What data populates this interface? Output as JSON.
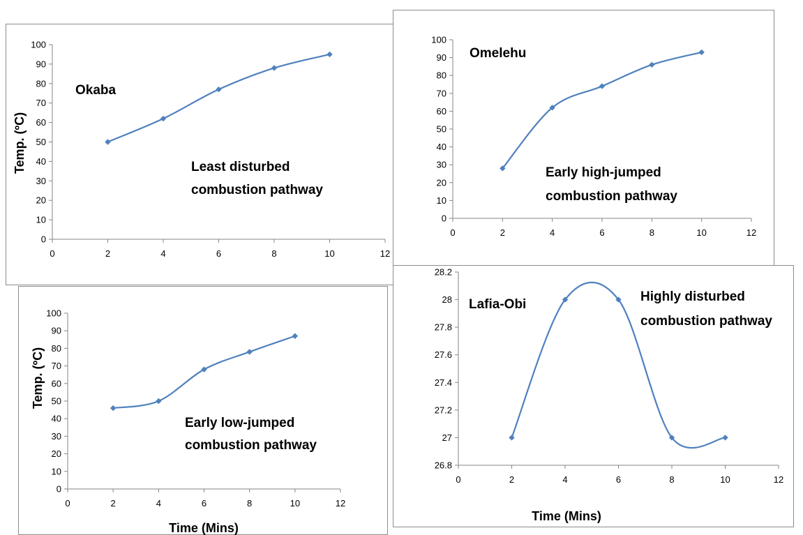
{
  "charts": {
    "okaba": {
      "title": "Okaba",
      "ylabel": "Temp. (ºC)",
      "annotation": [
        "Least disturbed",
        "combustion pathway"
      ]
    },
    "omelehu": {
      "title": "Omelehu",
      "annotation": [
        "Early high-jumped",
        "combustion pathway"
      ]
    },
    "early_low": {
      "ylabel": "Temp. (ºC)",
      "xlabel": "Time (Mins)",
      "annotation": [
        "Early low-jumped",
        "combustion pathway"
      ]
    },
    "lafia_obi": {
      "title": "Lafia-Obi",
      "xlabel": "Time (Mins)",
      "annotation": [
        "Highly disturbed",
        "combustion pathway"
      ]
    }
  },
  "colors": {
    "series": "#4f81bd",
    "axis": "#868686",
    "border": "#8c8c8c"
  },
  "chart_data": [
    {
      "type": "line",
      "title": "Okaba",
      "xlabel": "",
      "ylabel": "Temp. (ºC)",
      "x": [
        2,
        4,
        6,
        8,
        10
      ],
      "values": [
        50,
        62,
        77,
        88,
        95
      ],
      "xlim": [
        0,
        12
      ],
      "xticks": [
        0,
        2,
        4,
        6,
        8,
        10,
        12
      ],
      "xtick_labels": [
        "0",
        "2",
        "4",
        "6",
        "8",
        "10",
        "12"
      ],
      "ylim": [
        0,
        100
      ],
      "yticks": [
        0,
        10,
        20,
        30,
        40,
        50,
        60,
        70,
        80,
        90,
        100
      ],
      "ytick_labels": [
        "0",
        "10",
        "20",
        "30",
        "40",
        "50",
        "60",
        "70",
        "80",
        "90",
        "100"
      ],
      "smooth": true,
      "marker": "diamond",
      "grid": false,
      "legend": false
    },
    {
      "type": "line",
      "title": "Omelehu",
      "xlabel": "",
      "ylabel": "",
      "x": [
        2,
        4,
        6,
        8,
        10
      ],
      "values": [
        28,
        62,
        74,
        86,
        93
      ],
      "xlim": [
        0,
        12
      ],
      "xticks": [
        0,
        2,
        4,
        6,
        8,
        10,
        12
      ],
      "xtick_labels": [
        "0",
        "2",
        "4",
        "6",
        "8",
        "10",
        "12"
      ],
      "ylim": [
        0,
        100
      ],
      "yticks": [
        0,
        10,
        20,
        30,
        40,
        50,
        60,
        70,
        80,
        90,
        100
      ],
      "ytick_labels": [
        "0",
        "10",
        "20",
        "30",
        "40",
        "50",
        "60",
        "70",
        "80",
        "90",
        "100"
      ],
      "smooth": true,
      "marker": "diamond",
      "grid": false,
      "legend": false
    },
    {
      "type": "line",
      "title": "",
      "xlabel": "Time (Mins)",
      "ylabel": "Temp. (ºC)",
      "x": [
        2,
        4,
        6,
        8,
        10
      ],
      "values": [
        46,
        50,
        68,
        78,
        87
      ],
      "xlim": [
        0,
        12
      ],
      "xticks": [
        0,
        2,
        4,
        6,
        8,
        10,
        12
      ],
      "xtick_labels": [
        "0",
        "2",
        "4",
        "6",
        "8",
        "10",
        "12"
      ],
      "ylim": [
        0,
        100
      ],
      "yticks": [
        0,
        10,
        20,
        30,
        40,
        50,
        60,
        70,
        80,
        90,
        100
      ],
      "ytick_labels": [
        "0",
        "10",
        "20",
        "30",
        "40",
        "50",
        "60",
        "70",
        "80",
        "90",
        "100"
      ],
      "smooth": true,
      "marker": "diamond",
      "grid": false,
      "legend": false
    },
    {
      "type": "line",
      "title": "Lafia-Obi",
      "xlabel": "Time (Mins)",
      "ylabel": "",
      "x": [
        2,
        4,
        6,
        8,
        10
      ],
      "values": [
        27,
        28,
        28,
        27,
        27
      ],
      "xlim": [
        0,
        12
      ],
      "xticks": [
        0,
        2,
        4,
        6,
        8,
        10,
        12
      ],
      "xtick_labels": [
        "0",
        "2",
        "4",
        "6",
        "8",
        "10",
        "12"
      ],
      "ylim": [
        26.8,
        28.2
      ],
      "yticks": [
        26.8,
        27,
        27.2,
        27.4,
        27.6,
        27.8,
        28,
        28.2
      ],
      "ytick_labels": [
        "26.8",
        "27",
        "27.2",
        "27.4",
        "27.6",
        "27.8",
        "28",
        "28.2"
      ],
      "smooth": true,
      "marker": "diamond",
      "grid": false,
      "legend": false
    }
  ]
}
